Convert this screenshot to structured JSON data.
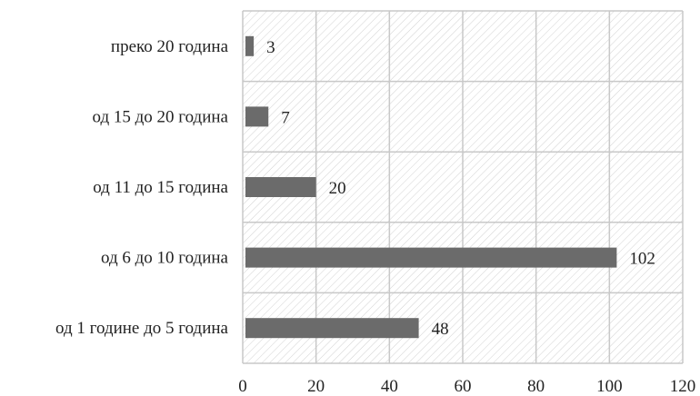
{
  "chart_data": {
    "type": "bar",
    "orientation": "horizontal",
    "categories": [
      "преко 20 година",
      "од 15 до 20 година",
      "од 11 до 15 година",
      "од 6 до 10 година",
      "од 1 године до 5 година"
    ],
    "values": [
      3,
      7,
      20,
      102,
      48
    ],
    "x_ticks": [
      "0",
      "20",
      "40",
      "60",
      "80",
      "100",
      "120"
    ],
    "xlim": [
      0,
      120
    ],
    "grid": true,
    "legend": "none",
    "title": "",
    "xlabel": "",
    "ylabel": "",
    "colors": {
      "bar": "#6b6b6b",
      "grid": "#c8c8c8",
      "hatch": "#cfcfcf",
      "text": "#222222"
    }
  }
}
